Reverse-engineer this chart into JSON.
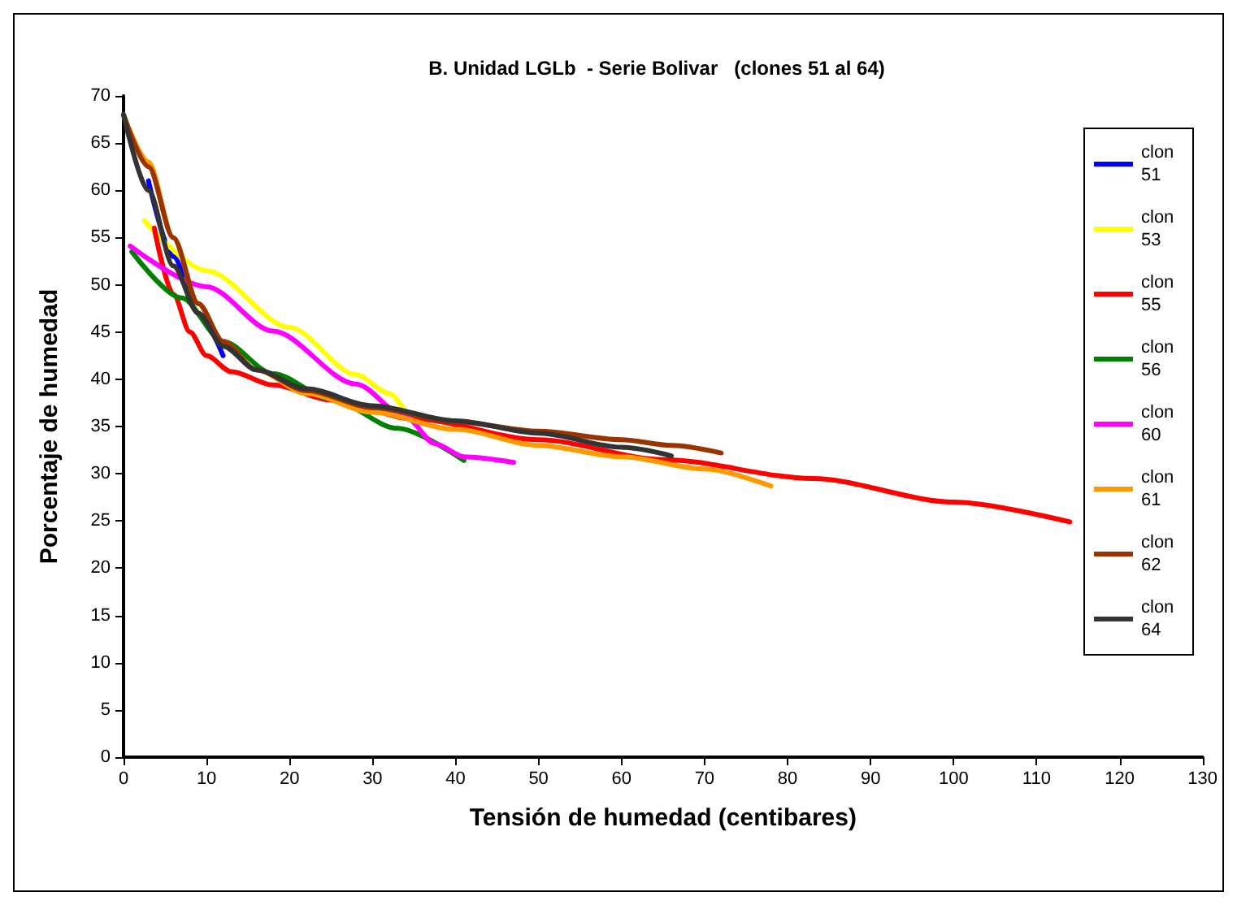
{
  "chart_data": {
    "type": "line",
    "title": "B. Unidad LGLb  - Serie Bolivar   (clones 51 al 64)",
    "xlabel": "Tensión de humedad (centibares)",
    "ylabel": "Porcentaje de humedad",
    "xlim": [
      0,
      130
    ],
    "xticks": [
      0,
      10,
      20,
      30,
      40,
      50,
      60,
      70,
      80,
      90,
      100,
      110,
      120,
      130
    ],
    "ylim": [
      0,
      70
    ],
    "yticks": [
      0,
      5,
      10,
      15,
      20,
      25,
      30,
      35,
      40,
      45,
      50,
      55,
      60,
      65,
      70
    ],
    "grid": false,
    "legend": "right",
    "marker": "none",
    "line_style": "solid",
    "series": [
      {
        "name": "clon 51",
        "color": "#0000ff",
        "x": [
          3,
          6,
          9,
          12
        ],
        "values": [
          61,
          53,
          47,
          42.5
        ]
      },
      {
        "name": "clon 53",
        "color": "#ffff00",
        "x": [
          2.5,
          10,
          20,
          28,
          32,
          34
        ],
        "values": [
          56.8,
          51.5,
          45.5,
          40.5,
          38.5,
          36.5
        ]
      },
      {
        "name": "clon 55",
        "color": "#ff0000",
        "x": [
          3.7,
          6,
          8,
          10,
          13,
          18,
          25,
          35,
          50,
          65,
          83,
          100,
          114
        ],
        "values": [
          56,
          49,
          45,
          42.5,
          40.8,
          39.4,
          37.8,
          35.8,
          33.6,
          31.5,
          29.5,
          27,
          24.9
        ]
      },
      {
        "name": "clon 56",
        "color": "#008000",
        "x": [
          1,
          7,
          12,
          18,
          25,
          33,
          41
        ],
        "values": [
          53.5,
          48.6,
          44,
          40.6,
          37.9,
          34.8,
          31.4
        ]
      },
      {
        "name": "clon 60",
        "color": "#ff00ff",
        "x": [
          0.8,
          10,
          18,
          28,
          34,
          37.5,
          41,
          47
        ],
        "values": [
          54.1,
          49.8,
          45.1,
          39.5,
          36,
          33.2,
          31.8,
          31.2
        ]
      },
      {
        "name": "clon 61",
        "color": "#ff9900",
        "x": [
          0,
          3,
          6,
          9,
          12,
          16,
          22,
          30,
          40,
          50,
          60,
          70,
          78
        ],
        "values": [
          68,
          63,
          55,
          48,
          44,
          41,
          38.5,
          36.5,
          34.7,
          33,
          31.8,
          30.5,
          28.7
        ]
      },
      {
        "name": "clon 62",
        "color": "#993300",
        "x": [
          0,
          3,
          6,
          9,
          12,
          16,
          22,
          30,
          40,
          50,
          60,
          66,
          72
        ],
        "values": [
          68,
          62.5,
          55,
          48,
          44,
          41,
          38.8,
          37,
          35.5,
          34.5,
          33.6,
          33,
          32.2
        ]
      },
      {
        "name": "clon 64",
        "color": "#333333",
        "x": [
          0,
          3,
          6,
          9,
          12,
          16,
          22,
          30,
          40,
          50,
          60,
          66
        ],
        "values": [
          68,
          60,
          52,
          47,
          43.5,
          41,
          39,
          37.2,
          35.6,
          34.3,
          32.8,
          31.9
        ]
      }
    ]
  }
}
